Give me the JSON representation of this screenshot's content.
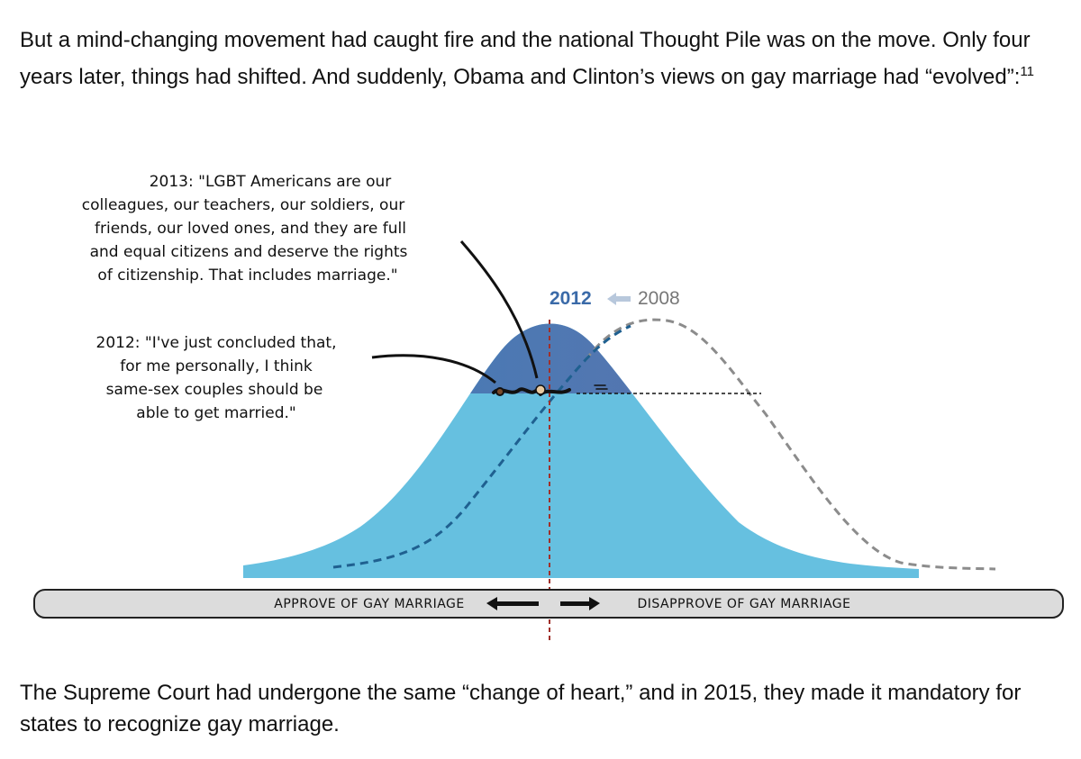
{
  "intro_text": "But a mind-changing movement had caught fire and the national Thought Pile was on the move. Only four years later, things had shifted. And suddenly, Obama and Clinton’s views on gay marriage had “evolved”:",
  "intro_footnote": "11",
  "diagram": {
    "quote_2013": [
      "2013: \"LGBT Americans are our",
      "colleagues, our teachers, our soldiers, our",
      "friends, our loved ones, and they are full",
      "and equal citizens and deserve the rights",
      "of citizenship. That includes marriage.\""
    ],
    "quote_2012": [
      "2012: \"I've just concluded that,",
      "for me personally, I think",
      "same-sex couples should be",
      "able to get married.\""
    ],
    "year_new": "2012",
    "year_old": "2008",
    "axis_left_label": "APPROVE OF GAY MARRIAGE",
    "axis_right_label": "DISAPPROVE OF GAY MARRIAGE",
    "colors": {
      "pile": "#66c0e0",
      "top_start": "#3f6fb2",
      "top_end": "#8b5ea8",
      "year_new": "#3a6aa8",
      "year_old": "#777777",
      "center_line": "#a0302a"
    }
  },
  "closing_text": "The Supreme Court had undergone the same “change of heart,” and in 2015, they made it mandatory for states to recognize gay marriage."
}
